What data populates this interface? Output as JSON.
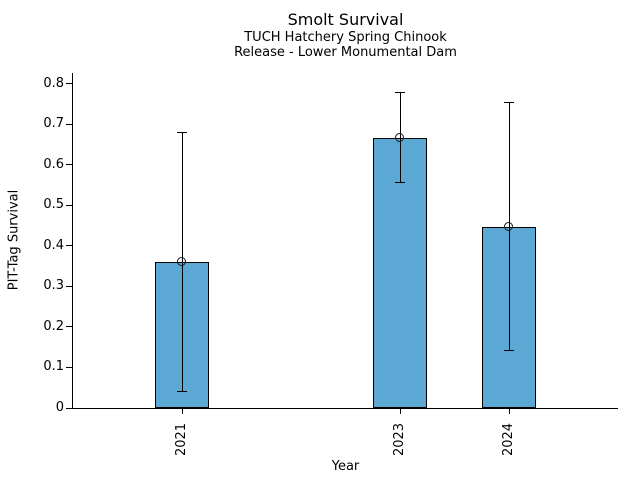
{
  "chart_data": {
    "type": "bar",
    "title": "Smolt Survival",
    "subtitle_line1": "TUCH Hatchery Spring Chinook",
    "subtitle_line2": "Release - Lower Monumental Dam",
    "xlabel": "Year",
    "ylabel": "PIT-Tag Survival",
    "categories": [
      "2021",
      "2023",
      "2024"
    ],
    "x": [
      2021,
      2023,
      2024
    ],
    "values": [
      0.36,
      0.667,
      0.447
    ],
    "error_low": [
      0.04,
      0.556,
      0.143
    ],
    "error_high": [
      0.68,
      0.78,
      0.755
    ],
    "xlim": [
      2020,
      2025
    ],
    "ylim": [
      0,
      0.827
    ],
    "yticks": [
      0,
      0.1,
      0.2,
      0.3,
      0.4,
      0.5,
      0.6,
      0.7,
      0.8
    ],
    "ytick_labels": [
      "0",
      "0.1",
      "0.2",
      "0.3",
      "0.4",
      "0.5",
      "0.6",
      "0.7",
      "0.8"
    ],
    "bar_width_x": 0.5,
    "bar_color": "#5BA8D5",
    "bar_edge_color": "#000000",
    "error_color": "#000000",
    "marker": "open-circle",
    "grid": false,
    "legend": false,
    "spines": [
      "left",
      "bottom"
    ]
  }
}
